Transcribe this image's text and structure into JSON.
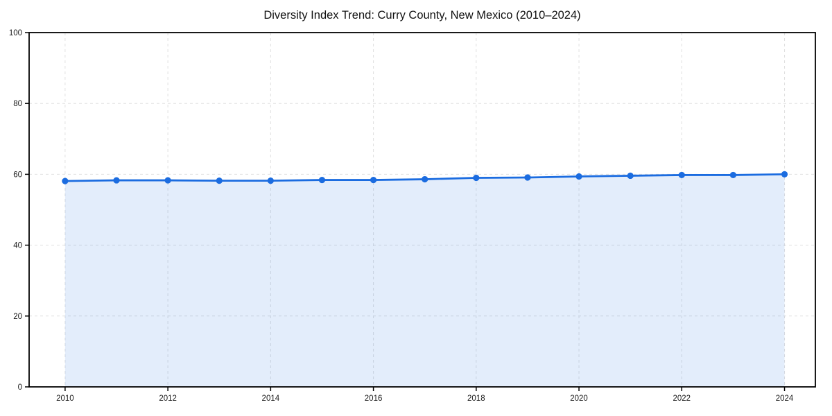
{
  "chart_data": {
    "type": "line",
    "title": "Diversity Index Trend: Curry County, New Mexico (2010–2024)",
    "xlabel": "",
    "ylabel": "",
    "x": [
      2010,
      2011,
      2012,
      2013,
      2014,
      2015,
      2016,
      2017,
      2018,
      2019,
      2020,
      2021,
      2022,
      2023,
      2024
    ],
    "series": [
      {
        "name": "Diversity Index",
        "values": [
          58.1,
          58.3,
          58.3,
          58.2,
          58.2,
          58.4,
          58.4,
          58.6,
          59.0,
          59.1,
          59.4,
          59.6,
          59.8,
          59.8,
          60.0
        ]
      }
    ],
    "ylim": [
      0,
      100
    ],
    "xlim": [
      2009.3,
      2024.6
    ],
    "yticks": [
      0,
      20,
      40,
      60,
      80,
      100
    ],
    "xticks": [
      2010,
      2012,
      2014,
      2016,
      2018,
      2020,
      2022,
      2024
    ],
    "grid": "dashed, both axes",
    "legend_position": "none",
    "area_fill_to_zero": true,
    "marker": "circle",
    "colors": {
      "line": "#1b6ce0",
      "marker": "#1b6ce0",
      "area_fill": "#e4edfb",
      "gridline": "#e0e0e0",
      "axis_border": "#000000",
      "tick_text": "#1a1a1a",
      "background": "#ffffff"
    }
  }
}
